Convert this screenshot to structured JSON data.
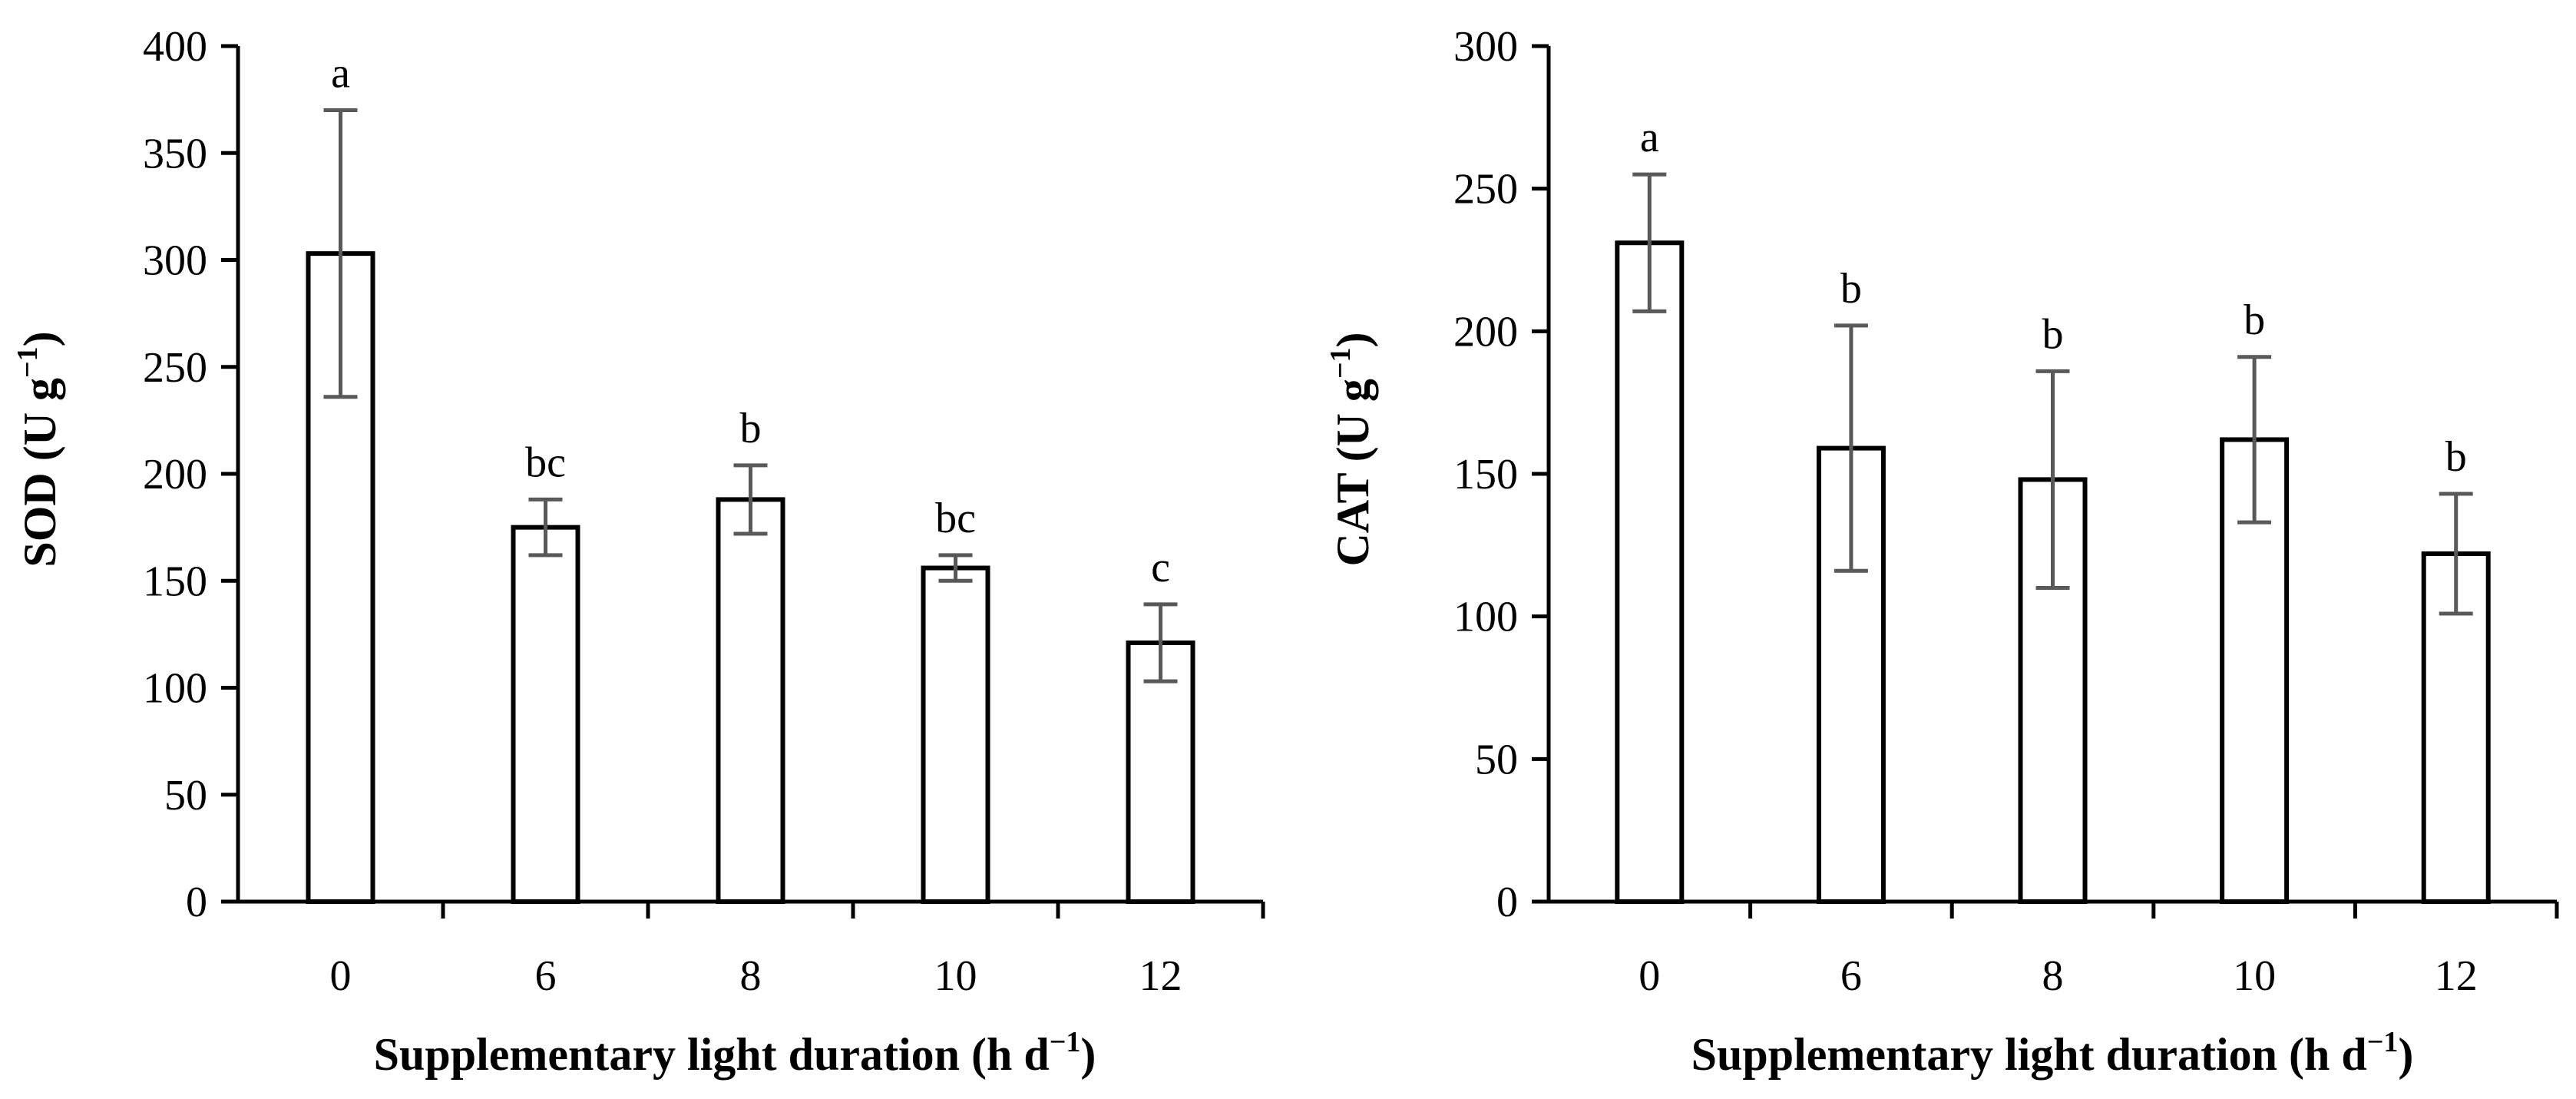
{
  "chart_data": [
    {
      "type": "bar",
      "categories": [
        "0",
        "6",
        "8",
        "10",
        "12"
      ],
      "values": [
        303,
        175,
        188,
        156,
        121
      ],
      "errors": [
        67,
        13,
        16,
        6,
        18
      ],
      "letters": [
        "a",
        "bc",
        "b",
        "bc",
        "c"
      ],
      "ylim": [
        0,
        400
      ],
      "yticks": [
        0,
        50,
        100,
        150,
        200,
        250,
        300,
        350,
        400
      ],
      "ylabel_main": "SOD (U g",
      "ylabel_sup": "−1",
      "ylabel_end": ")",
      "xlabel_main": "Supplementary light duration (h d",
      "xlabel_sup": "−1",
      "xlabel_end": ")"
    },
    {
      "type": "bar",
      "categories": [
        "0",
        "6",
        "8",
        "10",
        "12"
      ],
      "values": [
        231,
        159,
        148,
        162,
        122
      ],
      "errors": [
        24,
        43,
        38,
        29,
        21
      ],
      "letters": [
        "a",
        "b",
        "b",
        "b",
        "b"
      ],
      "ylim": [
        0,
        300
      ],
      "yticks": [
        0,
        50,
        100,
        150,
        200,
        250,
        300
      ],
      "ylabel_main": "CAT (U g",
      "ylabel_sup": "−1",
      "ylabel_end": ")",
      "xlabel_main": "Supplementary light duration (h d",
      "xlabel_sup": "−1",
      "xlabel_end": ")"
    }
  ]
}
